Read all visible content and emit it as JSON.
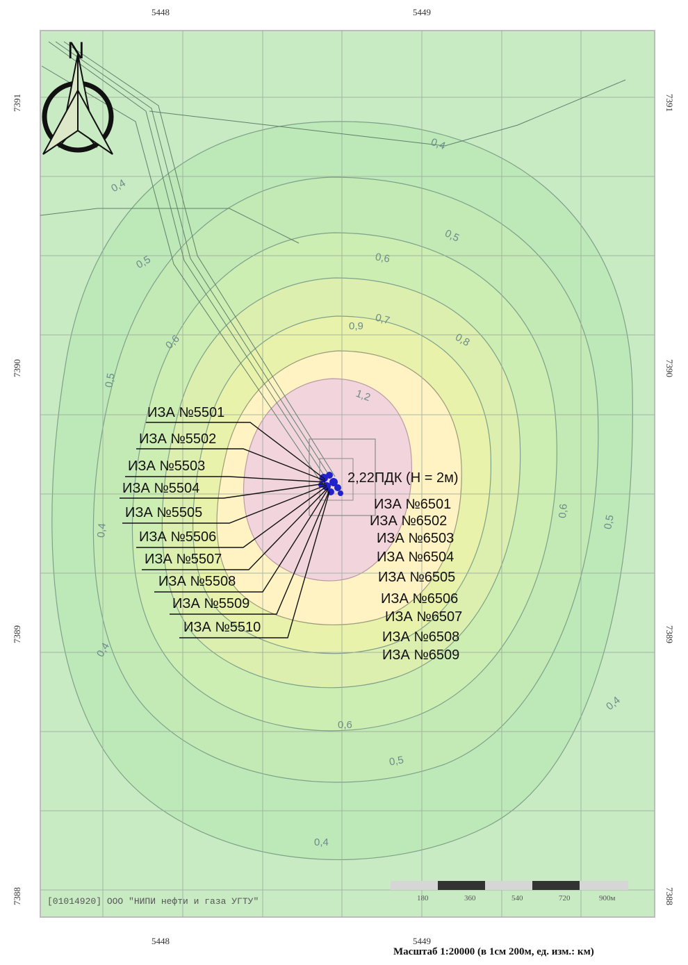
{
  "x_ticks_top": [
    "5448",
    "5449"
  ],
  "x_ticks_bottom": [
    "5448",
    "5449"
  ],
  "y_ticks": [
    "7391",
    "7390",
    "7389",
    "7388"
  ],
  "north_label": "N",
  "max_label": "2,22ПДК (Н = 2м)",
  "sources_left": [
    "ИЗА №5501",
    "ИЗА №5502",
    "ИЗА №5503",
    "ИЗА №5504",
    "ИЗА №5505",
    "ИЗА №5506",
    "ИЗА №5507",
    "ИЗА №5508",
    "ИЗА №5509",
    "ИЗА №5510"
  ],
  "sources_right": [
    "ИЗА №6501",
    "ИЗА №6502",
    "ИЗА №6503",
    "ИЗА №6504",
    "ИЗА №6505",
    "ИЗА №6506",
    "ИЗА №6507",
    "ИЗА №6508",
    "ИЗА №6509"
  ],
  "contour_labels": [
    "0,4",
    "0,4",
    "0,5",
    "0,5",
    "0,6",
    "0,7",
    "0,8",
    "0,9",
    "1,2",
    "0,6",
    "0,5",
    "0,5",
    "0,4",
    "0,6",
    "0,4",
    "0,4",
    "0,4",
    "0,5",
    "0,6"
  ],
  "credit": "[01014920] ООО \"НИПИ нефти и газа УГТУ\"",
  "scalebar_labels": [
    "180",
    "360",
    "540",
    "720",
    "900м"
  ],
  "scale_text": "Масштаб 1:20000 (в 1см 200м, ед. изм.: км)",
  "colors": {
    "outer": "#c9ebc4",
    "band1": "#b7e6b3",
    "band2": "#c3e9b6",
    "band3": "#d3edb3",
    "band4": "#e5f0ae",
    "center": "#fff3c4",
    "peak": "#f1d4dc",
    "grid": "#9aa99a",
    "source_marker": "#2222cc"
  }
}
